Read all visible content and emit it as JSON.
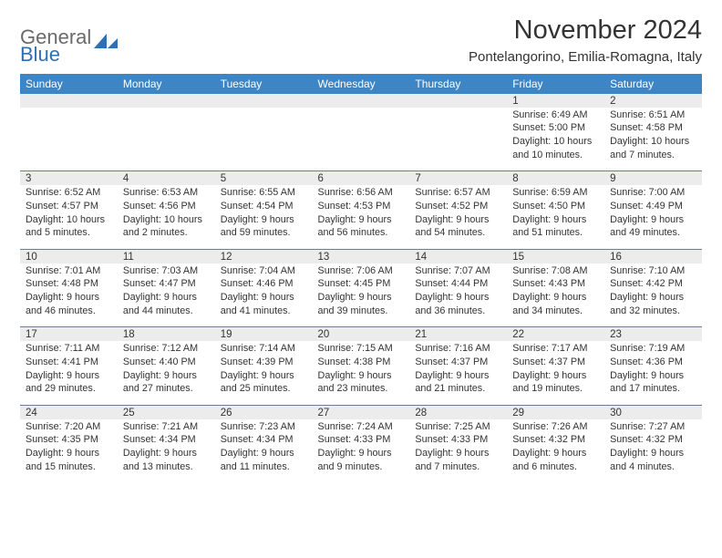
{
  "logo": {
    "word1": "General",
    "word2": "Blue"
  },
  "title": "November 2024",
  "location": "Pontelangorino, Emilia-Romagna, Italy",
  "weekday_labels": [
    "Sunday",
    "Monday",
    "Tuesday",
    "Wednesday",
    "Thursday",
    "Friday",
    "Saturday"
  ],
  "colors": {
    "header_bg": "#3e85c6",
    "header_text": "#ffffff",
    "daynum_bg": "#ececec",
    "row_divider": "#6b7f93",
    "text": "#333333",
    "logo_gray": "#6a6a6a",
    "logo_blue": "#2f6fb3"
  },
  "calendar": {
    "type": "table",
    "columns": 7,
    "weeks": [
      [
        null,
        null,
        null,
        null,
        null,
        {
          "day": "1",
          "sunrise": "Sunrise: 6:49 AM",
          "sunset": "Sunset: 5:00 PM",
          "daylight": "Daylight: 10 hours and 10 minutes."
        },
        {
          "day": "2",
          "sunrise": "Sunrise: 6:51 AM",
          "sunset": "Sunset: 4:58 PM",
          "daylight": "Daylight: 10 hours and 7 minutes."
        }
      ],
      [
        {
          "day": "3",
          "sunrise": "Sunrise: 6:52 AM",
          "sunset": "Sunset: 4:57 PM",
          "daylight": "Daylight: 10 hours and 5 minutes."
        },
        {
          "day": "4",
          "sunrise": "Sunrise: 6:53 AM",
          "sunset": "Sunset: 4:56 PM",
          "daylight": "Daylight: 10 hours and 2 minutes."
        },
        {
          "day": "5",
          "sunrise": "Sunrise: 6:55 AM",
          "sunset": "Sunset: 4:54 PM",
          "daylight": "Daylight: 9 hours and 59 minutes."
        },
        {
          "day": "6",
          "sunrise": "Sunrise: 6:56 AM",
          "sunset": "Sunset: 4:53 PM",
          "daylight": "Daylight: 9 hours and 56 minutes."
        },
        {
          "day": "7",
          "sunrise": "Sunrise: 6:57 AM",
          "sunset": "Sunset: 4:52 PM",
          "daylight": "Daylight: 9 hours and 54 minutes."
        },
        {
          "day": "8",
          "sunrise": "Sunrise: 6:59 AM",
          "sunset": "Sunset: 4:50 PM",
          "daylight": "Daylight: 9 hours and 51 minutes."
        },
        {
          "day": "9",
          "sunrise": "Sunrise: 7:00 AM",
          "sunset": "Sunset: 4:49 PM",
          "daylight": "Daylight: 9 hours and 49 minutes."
        }
      ],
      [
        {
          "day": "10",
          "sunrise": "Sunrise: 7:01 AM",
          "sunset": "Sunset: 4:48 PM",
          "daylight": "Daylight: 9 hours and 46 minutes."
        },
        {
          "day": "11",
          "sunrise": "Sunrise: 7:03 AM",
          "sunset": "Sunset: 4:47 PM",
          "daylight": "Daylight: 9 hours and 44 minutes."
        },
        {
          "day": "12",
          "sunrise": "Sunrise: 7:04 AM",
          "sunset": "Sunset: 4:46 PM",
          "daylight": "Daylight: 9 hours and 41 minutes."
        },
        {
          "day": "13",
          "sunrise": "Sunrise: 7:06 AM",
          "sunset": "Sunset: 4:45 PM",
          "daylight": "Daylight: 9 hours and 39 minutes."
        },
        {
          "day": "14",
          "sunrise": "Sunrise: 7:07 AM",
          "sunset": "Sunset: 4:44 PM",
          "daylight": "Daylight: 9 hours and 36 minutes."
        },
        {
          "day": "15",
          "sunrise": "Sunrise: 7:08 AM",
          "sunset": "Sunset: 4:43 PM",
          "daylight": "Daylight: 9 hours and 34 minutes."
        },
        {
          "day": "16",
          "sunrise": "Sunrise: 7:10 AM",
          "sunset": "Sunset: 4:42 PM",
          "daylight": "Daylight: 9 hours and 32 minutes."
        }
      ],
      [
        {
          "day": "17",
          "sunrise": "Sunrise: 7:11 AM",
          "sunset": "Sunset: 4:41 PM",
          "daylight": "Daylight: 9 hours and 29 minutes."
        },
        {
          "day": "18",
          "sunrise": "Sunrise: 7:12 AM",
          "sunset": "Sunset: 4:40 PM",
          "daylight": "Daylight: 9 hours and 27 minutes."
        },
        {
          "day": "19",
          "sunrise": "Sunrise: 7:14 AM",
          "sunset": "Sunset: 4:39 PM",
          "daylight": "Daylight: 9 hours and 25 minutes."
        },
        {
          "day": "20",
          "sunrise": "Sunrise: 7:15 AM",
          "sunset": "Sunset: 4:38 PM",
          "daylight": "Daylight: 9 hours and 23 minutes."
        },
        {
          "day": "21",
          "sunrise": "Sunrise: 7:16 AM",
          "sunset": "Sunset: 4:37 PM",
          "daylight": "Daylight: 9 hours and 21 minutes."
        },
        {
          "day": "22",
          "sunrise": "Sunrise: 7:17 AM",
          "sunset": "Sunset: 4:37 PM",
          "daylight": "Daylight: 9 hours and 19 minutes."
        },
        {
          "day": "23",
          "sunrise": "Sunrise: 7:19 AM",
          "sunset": "Sunset: 4:36 PM",
          "daylight": "Daylight: 9 hours and 17 minutes."
        }
      ],
      [
        {
          "day": "24",
          "sunrise": "Sunrise: 7:20 AM",
          "sunset": "Sunset: 4:35 PM",
          "daylight": "Daylight: 9 hours and 15 minutes."
        },
        {
          "day": "25",
          "sunrise": "Sunrise: 7:21 AM",
          "sunset": "Sunset: 4:34 PM",
          "daylight": "Daylight: 9 hours and 13 minutes."
        },
        {
          "day": "26",
          "sunrise": "Sunrise: 7:23 AM",
          "sunset": "Sunset: 4:34 PM",
          "daylight": "Daylight: 9 hours and 11 minutes."
        },
        {
          "day": "27",
          "sunrise": "Sunrise: 7:24 AM",
          "sunset": "Sunset: 4:33 PM",
          "daylight": "Daylight: 9 hours and 9 minutes."
        },
        {
          "day": "28",
          "sunrise": "Sunrise: 7:25 AM",
          "sunset": "Sunset: 4:33 PM",
          "daylight": "Daylight: 9 hours and 7 minutes."
        },
        {
          "day": "29",
          "sunrise": "Sunrise: 7:26 AM",
          "sunset": "Sunset: 4:32 PM",
          "daylight": "Daylight: 9 hours and 6 minutes."
        },
        {
          "day": "30",
          "sunrise": "Sunrise: 7:27 AM",
          "sunset": "Sunset: 4:32 PM",
          "daylight": "Daylight: 9 hours and 4 minutes."
        }
      ]
    ]
  }
}
